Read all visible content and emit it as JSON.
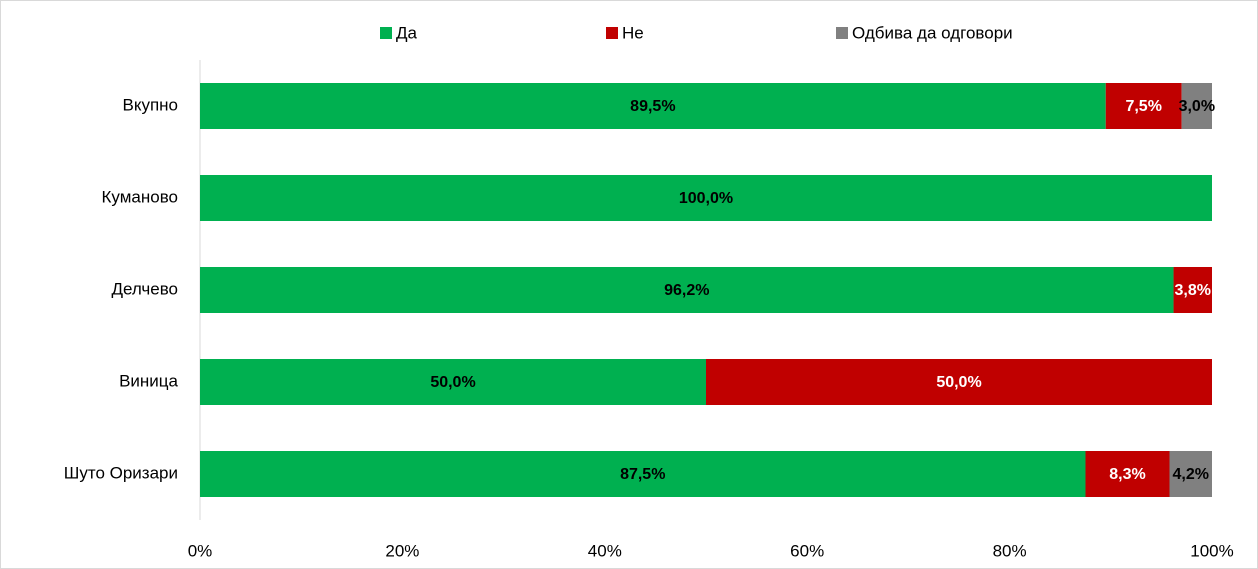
{
  "chart_data": {
    "type": "stacked-barh",
    "categories": [
      "Вкупно",
      "Куманово",
      "Делчево",
      "Виница",
      "Шуто Оризари"
    ],
    "series": [
      {
        "name": "Да",
        "color": "#00b050",
        "label_color": "#000000",
        "values": [
          89.5,
          100,
          96.2,
          50,
          87.5
        ],
        "value_labels": [
          "89,5%",
          "100,0%",
          "96,2%",
          "50,0%",
          "87,5%"
        ]
      },
      {
        "name": "Не",
        "color": "#c00000",
        "label_color": "#ffffff",
        "values": [
          7.5,
          0,
          3.8,
          50,
          8.3
        ],
        "value_labels": [
          "7,5%",
          null,
          "3,8%",
          "50,0%",
          "8,3%"
        ]
      },
      {
        "name": "Одбива да одговори",
        "color": "#808080",
        "label_color": "#000000",
        "values": [
          3.0,
          0,
          0,
          0,
          4.2
        ],
        "value_labels": [
          "3,0%",
          null,
          null,
          null,
          "4,2%"
        ]
      }
    ],
    "xlim": [
      0,
      100
    ],
    "xticks": [
      {
        "value": 0,
        "label": "0%"
      },
      {
        "value": 20,
        "label": "20%"
      },
      {
        "value": 40,
        "label": "40%"
      },
      {
        "value": 60,
        "label": "60%"
      },
      {
        "value": 80,
        "label": "80%"
      },
      {
        "value": 100,
        "label": "100%"
      }
    ],
    "legend": "top"
  }
}
